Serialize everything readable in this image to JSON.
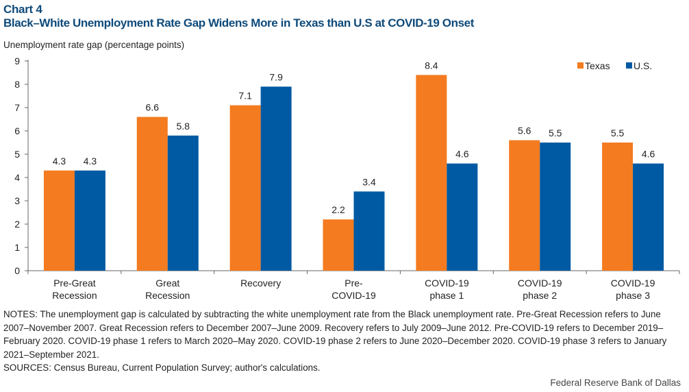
{
  "header": {
    "chart_number": "Chart 4",
    "title": "Black–White Unemployment Rate Gap Widens More in Texas than U.S at COVID-19 Onset"
  },
  "chart_data": {
    "type": "bar",
    "ylabel": "Unemployment rate gap (percentage points)",
    "ylim": [
      0,
      9
    ],
    "yticks": [
      "0",
      "1",
      "2",
      "3",
      "4",
      "5",
      "6",
      "7",
      "8",
      "9"
    ],
    "grid": false,
    "legend_position": "top-right",
    "categories": [
      [
        "Pre-Great",
        "Recession"
      ],
      [
        "Great",
        "Recession"
      ],
      [
        "Recovery"
      ],
      [
        "Pre-",
        "COVID-19"
      ],
      [
        "COVID-19",
        "phase 1"
      ],
      [
        "COVID-19",
        "phase 2"
      ],
      [
        "COVID-19",
        "phase 3"
      ]
    ],
    "series": [
      {
        "name": "Texas",
        "color": "#f47b20",
        "values": [
          4.3,
          6.6,
          7.1,
          2.2,
          8.4,
          5.6,
          5.5
        ],
        "labels": [
          "4.3",
          "6.6",
          "7.1",
          "2.2",
          "8.4",
          "5.6",
          "5.5"
        ]
      },
      {
        "name": "U.S.",
        "color": "#005aa3",
        "values": [
          4.3,
          5.8,
          7.9,
          3.4,
          4.6,
          5.5,
          4.6
        ],
        "labels": [
          "4.3",
          "5.8",
          "7.9",
          "3.4",
          "4.6",
          "5.5",
          "4.6"
        ]
      }
    ]
  },
  "notes": {
    "notes_text": "NOTES: The unemployment gap is calculated by subtracting the white unemployment rate from the Black unemployment rate. Pre-Great Recession refers to June 2007–November 2007. Great Recession refers to December 2007–June 2009. Recovery refers to July 2009–June 2012. Pre-COVID-19 refers to December 2019–February 2020. COVID-19 phase 1 refers to March 2020–May 2020. COVID-19 phase 2 refers to June 2020–December 2020. COVID-19 phase 3 refers to January 2021–September 2021.",
    "sources_text": "SOURCES: Census Bureau, Current Population Survey; author's calculations."
  },
  "footer": {
    "credit": "Federal Reserve Bank of Dallas"
  }
}
